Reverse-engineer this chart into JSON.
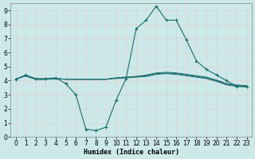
{
  "xlabel": "Humidex (Indice chaleur)",
  "background_color": "#cce8e8",
  "grid_color": "#ddeeee",
  "line_color": "#1a6b6b",
  "xlim": [
    -0.5,
    23.5
  ],
  "ylim": [
    0,
    9.5
  ],
  "series": [
    {
      "x": [
        0,
        1,
        2,
        3,
        4,
        5,
        6,
        7,
        8,
        9,
        10,
        11,
        12,
        13,
        14,
        15,
        16,
        17,
        18,
        19,
        20,
        21,
        22,
        23
      ],
      "y": [
        4.1,
        4.4,
        4.15,
        4.15,
        4.2,
        3.8,
        3.0,
        0.55,
        0.45,
        0.7,
        2.6,
        4.15,
        7.7,
        8.3,
        9.3,
        8.3,
        8.3,
        6.9,
        5.4,
        4.8,
        4.4,
        4.0,
        3.6,
        3.6
      ],
      "has_markers": true
    },
    {
      "x": [
        0,
        1,
        2,
        3,
        4,
        5,
        6,
        7,
        8,
        9,
        10,
        11,
        12,
        13,
        14,
        15,
        16,
        17,
        18,
        19,
        20,
        21,
        22,
        23
      ],
      "y": [
        4.1,
        4.35,
        4.1,
        4.1,
        4.15,
        4.1,
        4.1,
        4.1,
        4.1,
        4.1,
        4.15,
        4.2,
        4.25,
        4.3,
        4.45,
        4.5,
        4.45,
        4.35,
        4.25,
        4.15,
        3.95,
        3.7,
        3.6,
        3.55
      ],
      "has_markers": false
    },
    {
      "x": [
        0,
        1,
        2,
        3,
        4,
        5,
        6,
        7,
        8,
        9,
        10,
        11,
        12,
        13,
        14,
        15,
        16,
        17,
        18,
        19,
        20,
        21,
        22,
        23
      ],
      "y": [
        4.1,
        4.35,
        4.1,
        4.1,
        4.15,
        4.1,
        4.1,
        4.1,
        4.1,
        4.1,
        4.2,
        4.25,
        4.3,
        4.35,
        4.5,
        4.55,
        4.5,
        4.4,
        4.3,
        4.2,
        4.0,
        3.75,
        3.65,
        3.6
      ],
      "has_markers": false
    },
    {
      "x": [
        0,
        1,
        2,
        3,
        4,
        5,
        6,
        7,
        8,
        9,
        10,
        11,
        12,
        13,
        14,
        15,
        16,
        17,
        18,
        19,
        20,
        21,
        22,
        23
      ],
      "y": [
        4.1,
        4.35,
        4.1,
        4.1,
        4.15,
        4.1,
        4.1,
        4.1,
        4.1,
        4.1,
        4.2,
        4.25,
        4.3,
        4.4,
        4.55,
        4.6,
        4.55,
        4.45,
        4.35,
        4.25,
        4.05,
        3.8,
        3.7,
        3.65
      ],
      "has_markers": false
    }
  ]
}
